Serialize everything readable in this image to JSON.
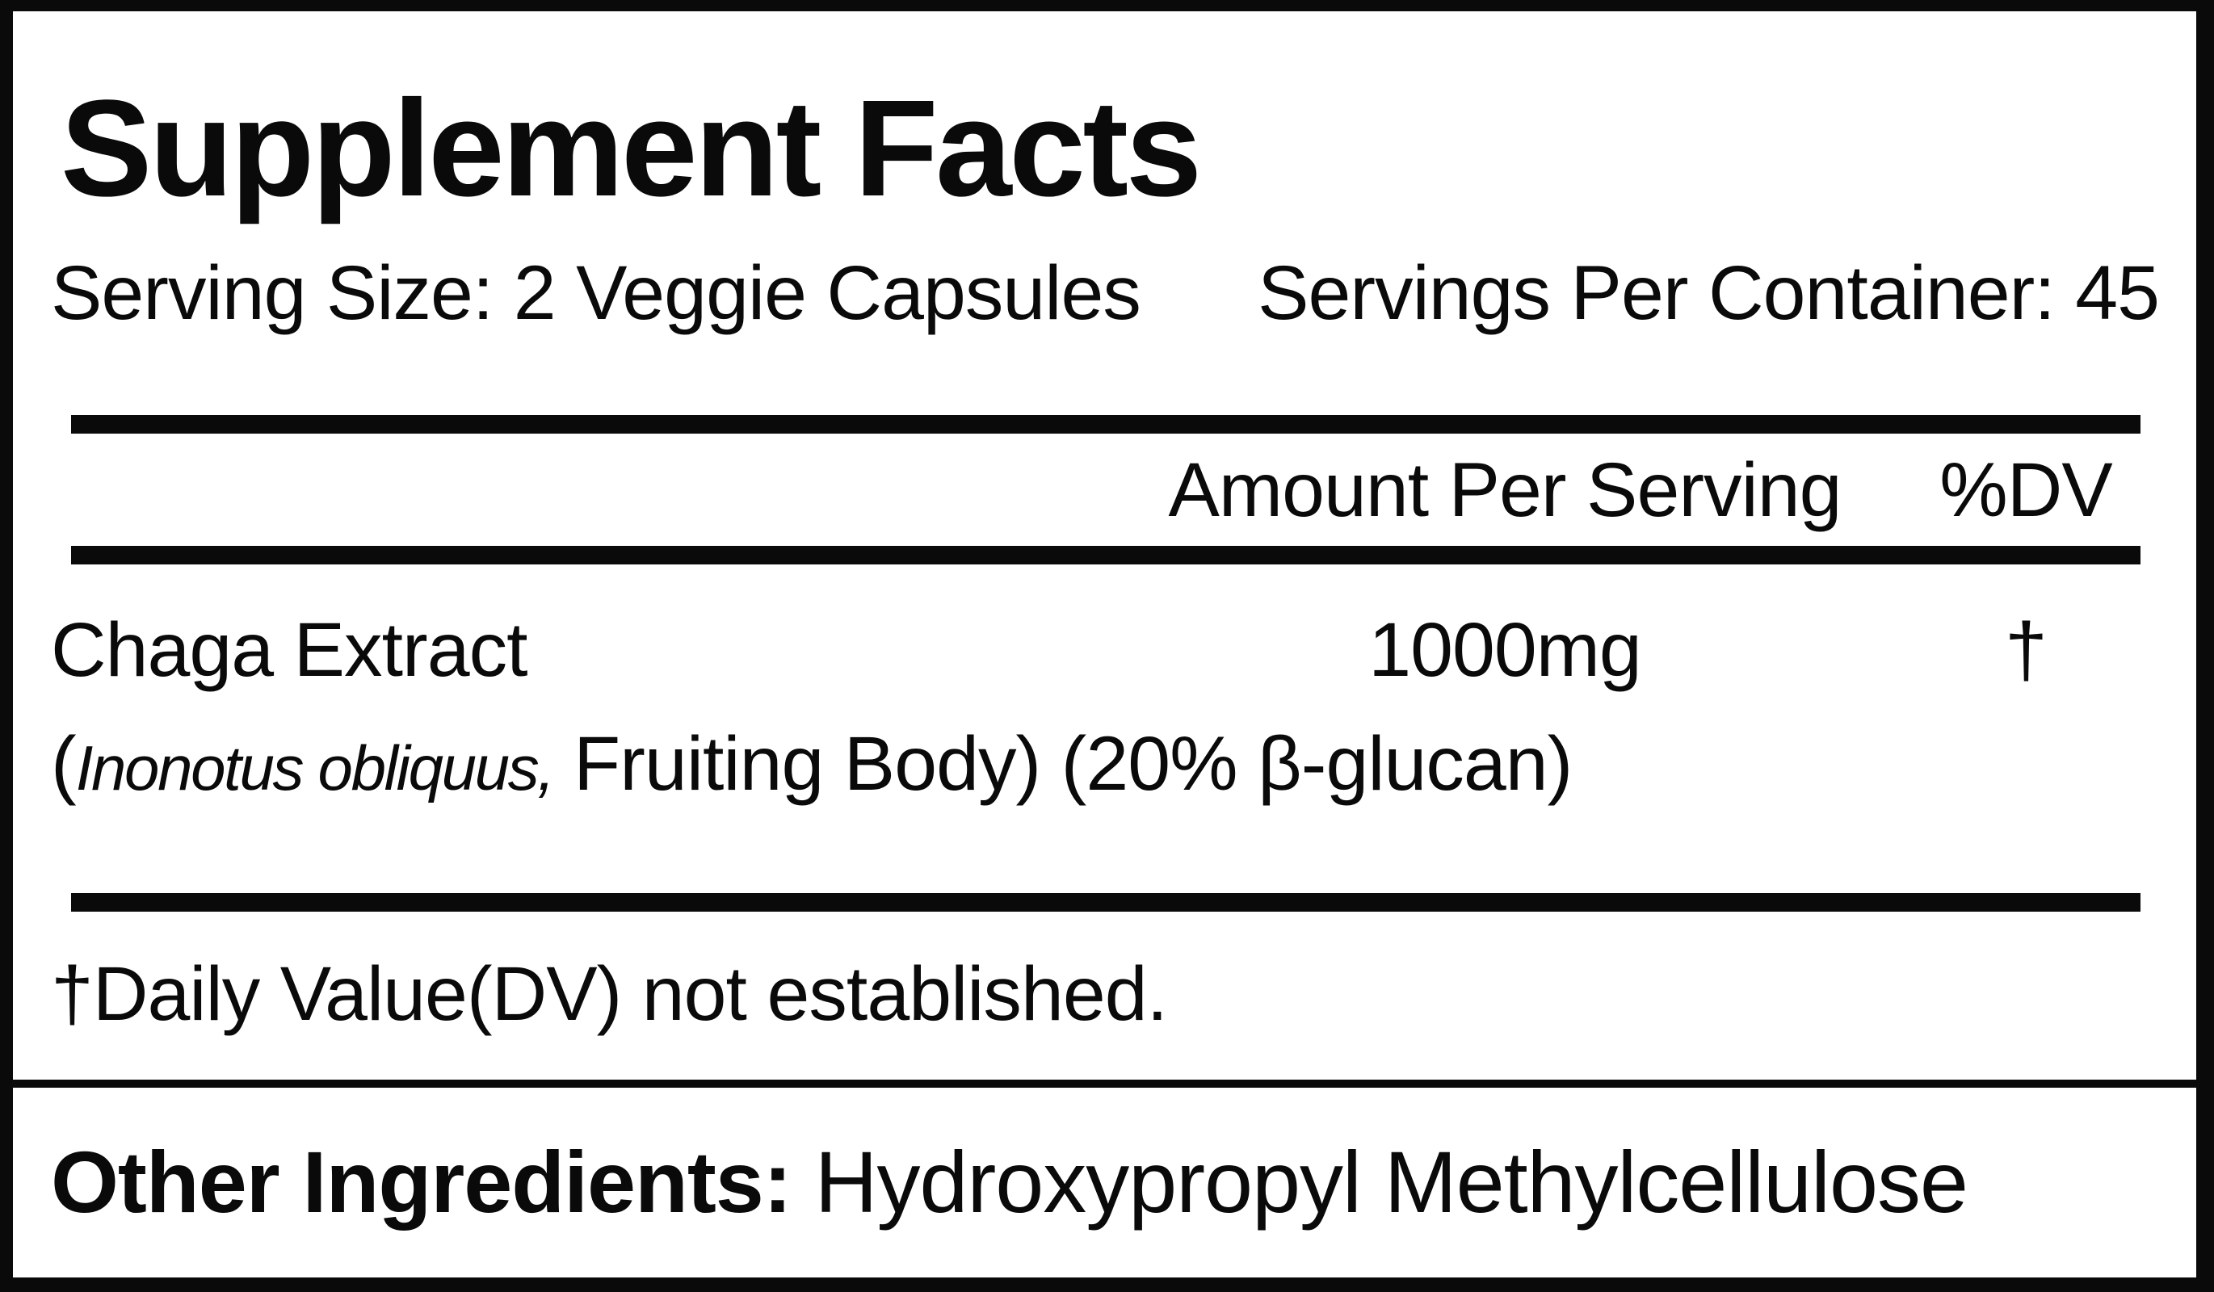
{
  "label": {
    "title": "Supplement Facts",
    "serving_size": "Serving Size: 2 Veggie Capsules",
    "servings_per_container": "Servings Per Container: 45",
    "columns": {
      "amount": "Amount Per Serving",
      "dv": "%DV"
    },
    "ingredients": [
      {
        "name": "Chaga Extract",
        "amount": "1000mg",
        "dv": "†",
        "detail_prefix": "(",
        "detail_italic": "Inonotus obliquus,",
        "detail_rest": " Fruiting Body) (20% β-glucan)"
      }
    ],
    "footnote": "†Daily Value(DV) not established.",
    "other_ingredients_label": "Other Ingredients:",
    "other_ingredients_value": " Hydroxypropyl Methylcellulose",
    "colors": {
      "ink": "#0a0a0a",
      "paper": "#ffffff"
    }
  }
}
